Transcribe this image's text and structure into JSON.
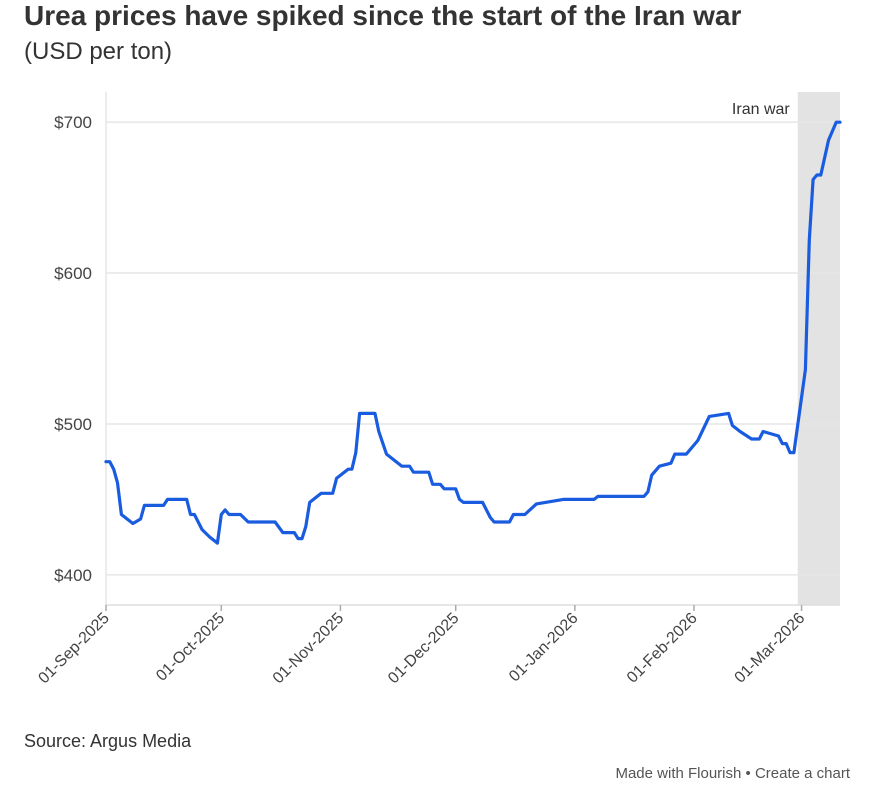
{
  "title": "Urea prices have spiked since the start of the Iran war",
  "subtitle": "(USD per ton)",
  "source": "Source: Argus Media",
  "footer": {
    "made_with": "Made with Flourish",
    "separator": " • ",
    "create": "Create a chart"
  },
  "chart_data": {
    "type": "line",
    "title": "Urea prices have spiked since the start of the Iran war",
    "ylabel": "(USD per ton)",
    "xlabel": "",
    "xlim": [
      "2025-09-01",
      "2026-03-11"
    ],
    "ylim": [
      380,
      720
    ],
    "y_ticks": [
      400,
      500,
      600,
      700
    ],
    "y_tick_labels": [
      "$400",
      "$500",
      "$600",
      "$700"
    ],
    "x_ticks": [
      "2025-09-01",
      "2025-10-01",
      "2025-11-01",
      "2025-12-01",
      "2026-01-01",
      "2026-02-01",
      "2026-03-01"
    ],
    "x_tick_labels": [
      "01-Sep-2025",
      "01-Oct-2025",
      "01-Nov-2025",
      "01-Dec-2025",
      "01-Jan-2026",
      "01-Feb-2026",
      "01-Mar-2026"
    ],
    "grid": "horizontal",
    "line_color": "#1a5ce0",
    "annotation": {
      "label": "Iran war",
      "start": "2026-02-28",
      "end": "2026-03-11",
      "color": "#e3e3e3"
    },
    "x": [
      "2025-09-01",
      "2025-09-02",
      "2025-09-03",
      "2025-09-04",
      "2025-09-05",
      "2025-09-08",
      "2025-09-10",
      "2025-09-11",
      "2025-09-16",
      "2025-09-17",
      "2025-09-22",
      "2025-09-23",
      "2025-09-24",
      "2025-09-26",
      "2025-09-28",
      "2025-09-30",
      "2025-10-01",
      "2025-10-02",
      "2025-10-03",
      "2025-10-06",
      "2025-10-08",
      "2025-10-15",
      "2025-10-17",
      "2025-10-20",
      "2025-10-21",
      "2025-10-22",
      "2025-10-23",
      "2025-10-24",
      "2025-10-27",
      "2025-10-30",
      "2025-10-31",
      "2025-11-03",
      "2025-11-04",
      "2025-11-05",
      "2025-11-06",
      "2025-11-10",
      "2025-11-11",
      "2025-11-13",
      "2025-11-17",
      "2025-11-19",
      "2025-11-20",
      "2025-11-24",
      "2025-11-25",
      "2025-11-27",
      "2025-11-28",
      "2025-12-01",
      "2025-12-02",
      "2025-12-03",
      "2025-12-08",
      "2025-12-10",
      "2025-12-11",
      "2025-12-15",
      "2025-12-16",
      "2025-12-19",
      "2025-12-22",
      "2025-12-29",
      "2026-01-06",
      "2026-01-07",
      "2026-01-19",
      "2026-01-20",
      "2026-01-21",
      "2026-01-23",
      "2026-01-26",
      "2026-01-27",
      "2026-01-30",
      "2026-02-02",
      "2026-02-05",
      "2026-02-10",
      "2026-02-11",
      "2026-02-13",
      "2026-02-16",
      "2026-02-18",
      "2026-02-19",
      "2026-02-23",
      "2026-02-24",
      "2026-02-25",
      "2026-02-26",
      "2026-02-27",
      "2026-03-02",
      "2026-03-03",
      "2026-03-04",
      "2026-03-05",
      "2026-03-06",
      "2026-03-08",
      "2026-03-10",
      "2026-03-11"
    ],
    "values": [
      475,
      475,
      470,
      461,
      440,
      434,
      437,
      446,
      446,
      450,
      450,
      440,
      440,
      430,
      425,
      421,
      440,
      443,
      440,
      440,
      435,
      435,
      428,
      428,
      424,
      424,
      432,
      448,
      454,
      454,
      464,
      470,
      470,
      481,
      507,
      507,
      495,
      480,
      472,
      472,
      468,
      468,
      460,
      460,
      457,
      457,
      450,
      448,
      448,
      438,
      435,
      435,
      440,
      440,
      447,
      450,
      450,
      452,
      452,
      455,
      466,
      472,
      474,
      480,
      480,
      489,
      505,
      507,
      499,
      495,
      490,
      490,
      495,
      492,
      487,
      487,
      481,
      481,
      536,
      622,
      662,
      665,
      665,
      688,
      700,
      700
    ]
  }
}
